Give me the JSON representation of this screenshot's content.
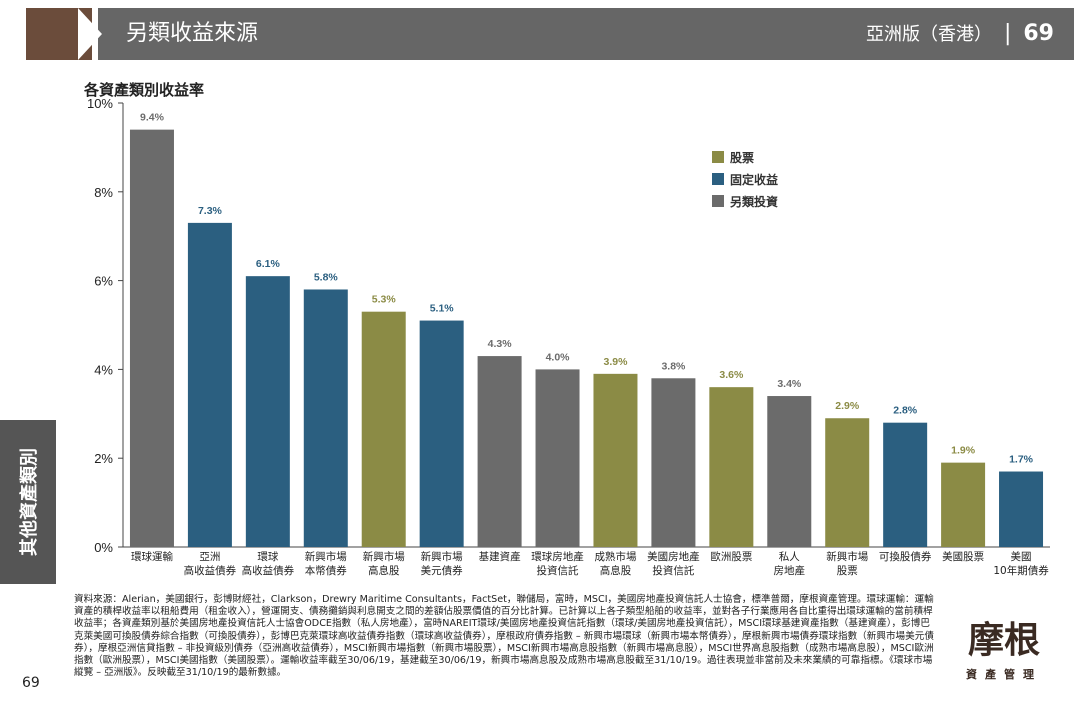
{
  "header": {
    "title": "另類收益來源",
    "edition": "亞洲版（香港）",
    "separator": "|",
    "page": "69"
  },
  "side_tab": {
    "label": "其他資產類別"
  },
  "legend": [
    {
      "label": "股票",
      "color": "#8b8b45"
    },
    {
      "label": "固定收益",
      "color": "#2b5f80"
    },
    {
      "label": "另類投資",
      "color": "#6b6b6b"
    }
  ],
  "chart_data": {
    "type": "bar",
    "title": "各資產類別收益率",
    "xlabel": "",
    "ylabel": "",
    "ylim": [
      0,
      10
    ],
    "yticks": [
      "0%",
      "2%",
      "4%",
      "6%",
      "8%",
      "10%"
    ],
    "grid": false,
    "legend_position": "top-right",
    "categories": [
      "環球運輸",
      "亞洲\n高收益債券",
      "環球\n高收益債券",
      "新興市場\n本幣債券",
      "新興市場\n高息股",
      "新興市場\n美元債券",
      "基建資產",
      "環球房地產\n投資信託",
      "成熟市場\n高息股",
      "美國房地產\n投資信託",
      "歐洲股票",
      "私人\n房地產",
      "新興市場\n股票",
      "可換股債券",
      "美國股票",
      "美國\n10年期債券"
    ],
    "values": [
      9.4,
      7.3,
      6.1,
      5.8,
      5.3,
      5.1,
      4.3,
      4.0,
      3.9,
      3.8,
      3.6,
      3.4,
      2.9,
      2.8,
      1.9,
      1.7
    ],
    "value_labels": [
      "9.4%",
      "7.3%",
      "6.1%",
      "5.8%",
      "5.3%",
      "5.1%",
      "4.3%",
      "4.0%",
      "3.9%",
      "3.8%",
      "3.6%",
      "3.4%",
      "2.9%",
      "2.8%",
      "1.9%",
      "1.7%"
    ],
    "groups": [
      "另類投資",
      "固定收益",
      "固定收益",
      "固定收益",
      "股票",
      "固定收益",
      "另類投資",
      "另類投資",
      "股票",
      "另類投資",
      "股票",
      "另類投資",
      "股票",
      "固定收益",
      "股票",
      "固定收益"
    ]
  },
  "source_text": "資料來源：Alerian，美國銀行，彭博財經社，Clarkson，Drewry Maritime Consultants，FactSet，聯儲局，富時，MSCI，美國房地產投資信託人士協會，標準普爾，摩根資產管理。環球運輸：運輸資產的積桿收益率以租船費用（租金收入），營運開支、債務攤銷與利息開支之間的差額佔股票價值的百分比計算。已計算以上各子類型船舶的收益率，並對各子行業應用各自比重得出環球運輸的當前積桿收益率；各資產類別基於美國房地產投資信託人士協會ODCE指數（私人房地產），富時NAREIT環球/美國房地產投資信託指數（環球/美國房地產投資信託），MSCI環球基建資產指數（基建資產），彭博巴克萊美國可換股債券綜合指數（可換股債券），彭博巴克萊環球高收益債券指數（環球高收益債券），摩根政府債券指數 – 新興市場環球（新興市場本幣債券），摩根新興市場債券環球指數（新興市場美元債券），摩根亞洲信貸指數 – 非投資級別債券（亞洲高收益債券），MSCI新興市場指數（新興市場股票），MSCI新興市場高息股指數（新興市場高息股），MSCI世界高息股指數（成熟市場高息股），MSCI歐洲指數（歐洲股票），MSCI美國指數（美國股票）。運輸收益率截至30/06/19，基建截至30/06/19，新興市場高息股及成熟市場高息股截至31/10/19。過往表現並非當前及未來業績的可靠指標。《環球市場縱覽 – 亞洲版》。反映截至31/10/19的最新數據。",
  "footer": {
    "page_number": "69"
  },
  "logo": {
    "main": "摩根",
    "sub": "資產管理"
  }
}
